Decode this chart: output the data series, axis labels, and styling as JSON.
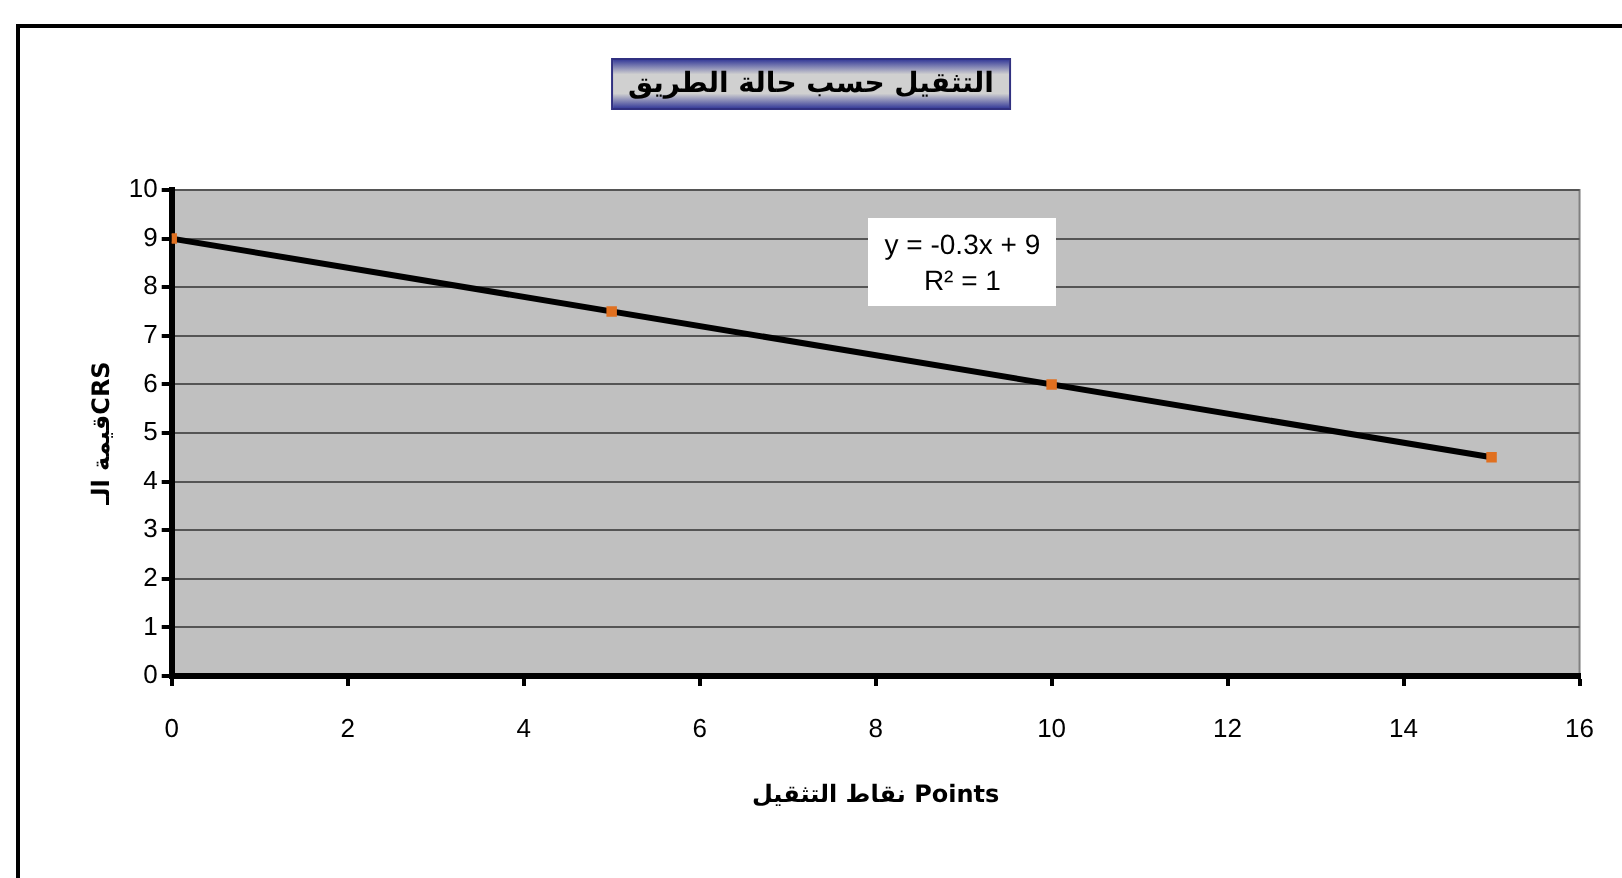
{
  "chart_data": {
    "type": "scatter",
    "title": "التثقيل حسب حالة الطريق",
    "xlabel": "نقاط التثقيل Points",
    "ylabel": "قيمة الـCRS",
    "x": [
      0,
      5,
      10,
      15
    ],
    "series": [
      {
        "color": "#e07020",
        "values": [
          9,
          7.5,
          6,
          4.5
        ],
        "marker": "square"
      },
      {
        "type": "line",
        "color": "#000000",
        "x": [
          0,
          15
        ],
        "values": [
          9,
          4.5
        ],
        "marker": "none"
      }
    ],
    "annotations": [
      "y = -0.3x + 9",
      "R² = 1"
    ],
    "grid": "y",
    "legend": false,
    "xlim": [
      0,
      16
    ],
    "xticks": [
      0,
      2,
      4,
      6,
      8,
      10,
      12,
      14,
      16
    ],
    "ylim": [
      0,
      10
    ],
    "yticks": [
      0,
      1,
      2,
      3,
      4,
      5,
      6,
      7,
      8,
      9,
      10
    ]
  }
}
